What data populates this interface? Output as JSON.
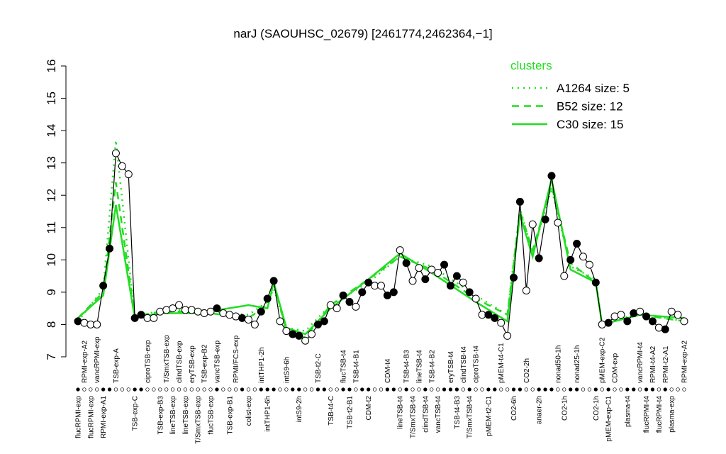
{
  "chart_data": {
    "type": "line",
    "title": "narJ (SAOUHSC_02679) [2461774,2462364,−1]",
    "ylim": [
      7,
      16
    ],
    "yticks": [
      7,
      8,
      9,
      10,
      11,
      12,
      13,
      14,
      15,
      16
    ],
    "legend_title": "clusters",
    "legend_position": "top-right",
    "categories": [
      "flucRPMI-exp",
      "RPMI-exp-A2",
      "flucRPMI-exp",
      "vancRPMI-exp",
      "RPMI-exp-A1",
      null,
      "TSB-exp-A",
      null,
      null,
      "TSB-exp-C",
      null,
      "ciproTSB-exp",
      null,
      "TSB-exp-B3",
      "T/SmxTSB-exp",
      "lineTSB-exp",
      "clindTSB-exp",
      "lineTSB-exp",
      "eryTSB-exp",
      "T/SmxTSB-exp",
      "TSB-exp-B2",
      "flucTSB-exp",
      "vancTSB-exp",
      null,
      "TSB-exp-B1",
      "RPMI/FCS-exp",
      null,
      "colist-exp",
      null,
      "intTHP1-2h",
      "intTHP1-6h",
      null,
      null,
      "intS9-6h",
      null,
      "intS9-2h",
      null,
      null,
      "TSB-t2-C",
      null,
      "TSB-t4-C",
      null,
      "flucTSB-t4",
      "TSB-t2-B1",
      "TSB-t4-B1",
      null,
      "CDM-t2",
      null,
      null,
      "CDM-t4",
      null,
      "lineTSB-t4",
      "TSB-t4-B3",
      "T/SmxTSB-t4",
      "lineTSB-t4",
      "clindTSB-t4",
      "TSB-t4-B2",
      "vancTSB-t4",
      null,
      "eryTSB-t4",
      "TSB-t4-B3",
      "clindTSB-t4",
      "T/SmxTSB-t4",
      "ciproTSB-t4",
      null,
      "pMEM-t2-C1",
      null,
      "pMEM-t4-C1",
      null,
      "CO2-6h",
      null,
      "CO2-2h",
      null,
      "anaer-2h",
      null,
      null,
      "nonad50-1h",
      "CO2-1h",
      null,
      "nonad25-1h",
      null,
      null,
      "CO2-1h",
      "pMEM-exp-C2",
      "pMEM-exp-C1",
      "CDM-exp",
      null,
      "plasma-t4",
      null,
      "vancRPMI-t4",
      "flucRPMI-t4",
      "RPMI-t4-A2",
      "flucRPMI-t4",
      "RPMI-t2-A1",
      "plasma-exp",
      null,
      "RPMI-exp-A2"
    ],
    "values": [
      8.1,
      8.05,
      8.0,
      8.0,
      9.2,
      10.35,
      13.3,
      12.9,
      12.65,
      8.2,
      8.3,
      8.2,
      8.2,
      8.4,
      8.45,
      8.5,
      8.6,
      8.45,
      8.45,
      8.4,
      8.35,
      8.4,
      8.5,
      8.35,
      8.3,
      8.25,
      8.2,
      8.15,
      8.0,
      8.4,
      8.8,
      9.35,
      8.1,
      7.8,
      7.7,
      7.65,
      7.5,
      7.7,
      8.0,
      8.1,
      8.6,
      8.5,
      8.9,
      8.7,
      8.55,
      9.0,
      9.3,
      9.2,
      9.2,
      8.9,
      9.0,
      10.3,
      9.9,
      9.35,
      9.75,
      9.4,
      9.7,
      9.6,
      9.85,
      9.2,
      9.5,
      9.3,
      9.0,
      8.8,
      8.3,
      8.3,
      8.2,
      8.05,
      7.65,
      9.45,
      11.8,
      9.05,
      11.1,
      10.05,
      11.25,
      12.6,
      11.15,
      9.5,
      10.0,
      10.5,
      10.1,
      9.85,
      9.3,
      8.0,
      8.05,
      8.25,
      8.3,
      8.1,
      8.35,
      8.4,
      8.25,
      8.1,
      7.9,
      7.85,
      8.4,
      8.3,
      8.1
    ],
    "point_fill": [
      "black",
      "white",
      "white",
      "white",
      "black",
      "black",
      "white",
      "white",
      "white",
      "black",
      "black",
      "white",
      "white",
      "white",
      "white",
      "white",
      "white",
      "white",
      "white",
      "white",
      "white",
      "white",
      "black",
      "white",
      "white",
      "white",
      "black",
      "white",
      "white",
      "black",
      "black",
      "black",
      "white",
      "white",
      "black",
      "black",
      "white",
      "white",
      "black",
      "black",
      "white",
      "white",
      "black",
      "black",
      "white",
      "black",
      "black",
      "white",
      "white",
      "black",
      "black",
      "white",
      "black",
      "white",
      "white",
      "black",
      "white",
      "white",
      "black",
      "black",
      "black",
      "white",
      "black",
      "white",
      "white",
      "black",
      "black",
      "white",
      "white",
      "black",
      "black",
      "white",
      "white",
      "black",
      "black",
      "black",
      "white",
      "white",
      "black",
      "black",
      "white",
      "white",
      "black",
      "white",
      "black",
      "white",
      "white",
      "black",
      "black",
      "white",
      "black",
      "black",
      "white",
      "black",
      "white",
      "white",
      "white"
    ],
    "series": [
      {
        "name": "A1264 size: 5",
        "color": "#22dd22",
        "dash": "dotted",
        "x": [
          1,
          5,
          7,
          10,
          14,
          20,
          28,
          31,
          32,
          34,
          37,
          41,
          47,
          52,
          57,
          64,
          69,
          71,
          73,
          76,
          79,
          83,
          84,
          90,
          97
        ],
        "values": [
          8.1,
          9.1,
          13.7,
          8.2,
          8.45,
          8.45,
          8.3,
          8.7,
          9.1,
          7.9,
          7.8,
          8.6,
          9.3,
          10.1,
          9.8,
          8.9,
          8.3,
          11.6,
          10.2,
          12.2,
          9.8,
          9.4,
          8.0,
          8.35,
          8.1
        ]
      },
      {
        "name": "B52 size: 12",
        "color": "#22dd22",
        "dash": "dashed",
        "x": [
          1,
          5,
          7,
          10,
          14,
          20,
          28,
          31,
          32,
          34,
          37,
          41,
          47,
          52,
          57,
          64,
          69,
          71,
          73,
          76,
          79,
          83,
          84,
          90,
          97
        ],
        "values": [
          8.2,
          9.0,
          12.4,
          8.25,
          8.4,
          8.4,
          8.2,
          8.6,
          9.3,
          7.8,
          7.6,
          8.6,
          9.4,
          10.1,
          9.7,
          8.8,
          8.3,
          11.5,
          10.3,
          12.3,
          9.9,
          9.3,
          8.0,
          8.3,
          8.1
        ]
      },
      {
        "name": "C30 size: 15",
        "color": "#22dd22",
        "dash": "solid",
        "x": [
          1,
          5,
          7,
          10,
          14,
          20,
          28,
          31,
          32,
          34,
          37,
          41,
          47,
          52,
          57,
          64,
          69,
          71,
          73,
          76,
          79,
          83,
          84,
          90,
          97
        ],
        "values": [
          8.2,
          8.9,
          11.7,
          8.2,
          8.35,
          8.35,
          8.6,
          8.5,
          9.3,
          7.9,
          7.7,
          8.5,
          9.4,
          10.2,
          9.6,
          8.7,
          8.1,
          11.4,
          10.1,
          12.5,
          9.7,
          9.3,
          8.0,
          8.3,
          8.2
        ]
      }
    ]
  }
}
